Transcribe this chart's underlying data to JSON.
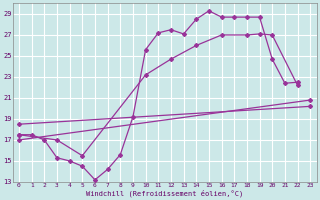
{
  "background_color": "#cce8e8",
  "grid_color": "#ffffff",
  "line_color": "#993399",
  "xlabel": "Windchill (Refroidissement éolien,°C)",
  "xlim": [
    -0.5,
    23.5
  ],
  "ylim": [
    13,
    30
  ],
  "yticks": [
    13,
    15,
    17,
    19,
    21,
    23,
    25,
    27,
    29
  ],
  "xticks": [
    0,
    1,
    2,
    3,
    4,
    5,
    6,
    7,
    8,
    9,
    10,
    11,
    12,
    13,
    14,
    15,
    16,
    17,
    18,
    19,
    20,
    21,
    22,
    23
  ],
  "line1_x": [
    0,
    1,
    2,
    3,
    4,
    5,
    6,
    7,
    8,
    9,
    10,
    11,
    12,
    13,
    14,
    15,
    16,
    17,
    18,
    19,
    20,
    21,
    22
  ],
  "line1_y": [
    17.5,
    17.5,
    17.0,
    15.3,
    15.0,
    14.5,
    13.2,
    14.2,
    15.6,
    19.2,
    25.6,
    27.2,
    27.5,
    27.1,
    28.5,
    29.3,
    28.7,
    28.7,
    28.7,
    28.7,
    24.7,
    22.4,
    22.5
  ],
  "line2_x": [
    0,
    3,
    5,
    10,
    12,
    14,
    16,
    18,
    19,
    20,
    22
  ],
  "line2_y": [
    17.5,
    17.0,
    15.5,
    23.2,
    24.7,
    26.0,
    27.0,
    27.0,
    27.1,
    27.0,
    22.2
  ],
  "line3_x": [
    0,
    23
  ],
  "line3_y": [
    17.0,
    20.8
  ],
  "line4_x": [
    0,
    23
  ],
  "line4_y": [
    18.5,
    20.2
  ]
}
